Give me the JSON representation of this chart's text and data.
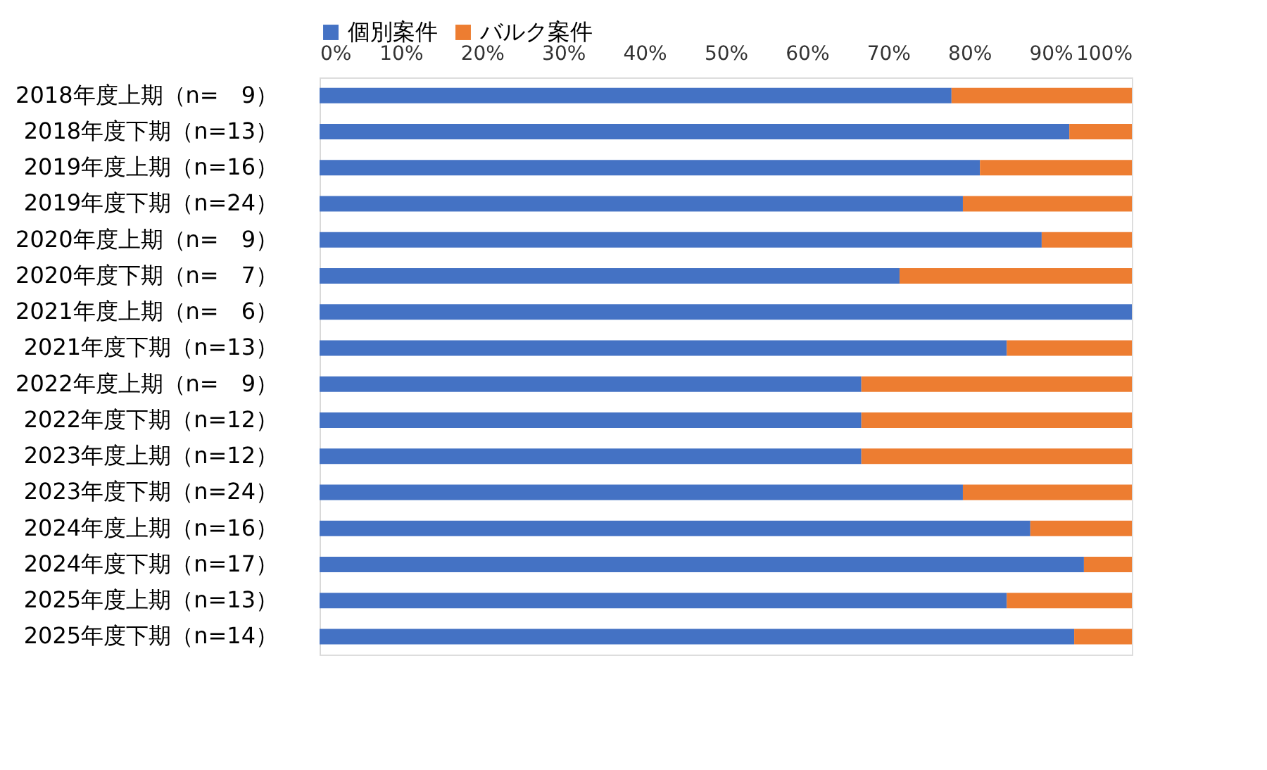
{
  "chart_data": {
    "type": "bar",
    "orientation": "horizontal",
    "stacked": true,
    "categories": [
      "2018年度上期（n=　9）",
      "2018年度下期（n=13）",
      "2019年度上期（n=16）",
      "2019年度下期（n=24）",
      "2020年度上期（n=　9）",
      "2020年度下期（n=　7）",
      "2021年度上期（n=　6）",
      "2021年度下期（n=13）",
      "2022年度上期（n=　9）",
      "2022年度下期（n=12）",
      "2023年度上期（n=12）",
      "2023年度下期（n=24）",
      "2024年度上期（n=16）",
      "2024年度下期（n=17）",
      "2025年度上期（n=13）",
      "2025年度下期（n=14）"
    ],
    "series": [
      {
        "name": "個別案件",
        "color": "#4472c4",
        "values": [
          77.8,
          92.3,
          81.3,
          79.2,
          88.9,
          71.4,
          100,
          84.6,
          66.7,
          66.7,
          66.7,
          79.2,
          87.5,
          94.1,
          84.6,
          92.9
        ]
      },
      {
        "name": "バルク案件",
        "color": "#ed7d31",
        "values": [
          22.2,
          7.7,
          18.7,
          20.8,
          11.1,
          28.6,
          0,
          15.4,
          33.3,
          33.3,
          33.3,
          20.8,
          12.5,
          5.9,
          15.4,
          7.1
        ]
      }
    ],
    "xlim": [
      0,
      100
    ],
    "xticks": [
      {
        "value": 0,
        "label": "0%"
      },
      {
        "value": 10,
        "label": "10%"
      },
      {
        "value": 20,
        "label": "20%"
      },
      {
        "value": 30,
        "label": "30%"
      },
      {
        "value": 40,
        "label": "40%"
      },
      {
        "value": 50,
        "label": "50%"
      },
      {
        "value": 60,
        "label": "60%"
      },
      {
        "value": 70,
        "label": "70%"
      },
      {
        "value": 80,
        "label": "80%"
      },
      {
        "value": 90,
        "label": "90%"
      },
      {
        "value": 100,
        "label": "100%"
      }
    ],
    "grid": false,
    "legend": "top"
  }
}
